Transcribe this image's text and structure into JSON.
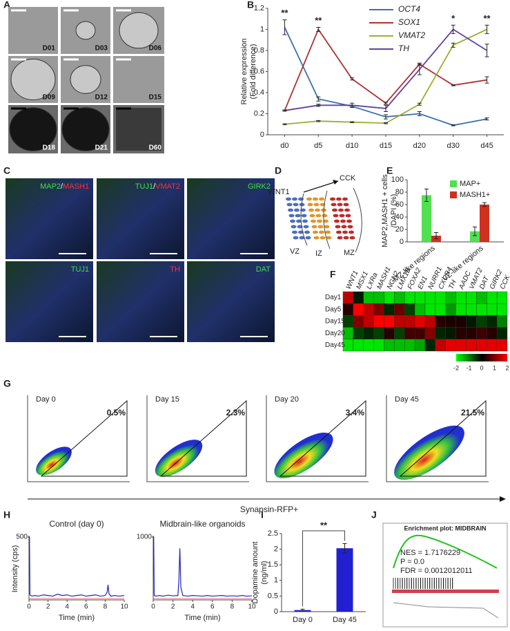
{
  "figure": {
    "panel_labels": [
      "A",
      "B",
      "C",
      "D",
      "E",
      "F",
      "G",
      "H",
      "I",
      "J"
    ],
    "a_labels": [
      "D01",
      "D03",
      "D06",
      "D09",
      "D12",
      "D15",
      "D18",
      "D21",
      "D60"
    ],
    "c_labels": [
      [
        {
          "text": "MAP2",
          "color": "#40e040"
        },
        {
          "text": "/",
          "color": "#ffffff"
        },
        {
          "text": "MASH1",
          "color": "#ff3030"
        }
      ],
      [
        {
          "text": "TUJ1",
          "color": "#40e040"
        },
        {
          "text": "/",
          "color": "#ffffff"
        },
        {
          "text": "VMAT2",
          "color": "#ff3030"
        }
      ],
      [
        {
          "text": "GIRK2",
          "color": "#40e040"
        }
      ],
      [
        {
          "text": "TUJ1",
          "color": "#40e040"
        }
      ],
      [
        {
          "text": "TH",
          "color": "#ff3030"
        }
      ],
      [
        {
          "text": "DAT",
          "color": "#40e040"
        }
      ]
    ],
    "d_labels": [
      "WNT1",
      "CCK",
      "VZ",
      "IZ",
      "MZ"
    ],
    "g": {
      "panels": [
        {
          "title": "Day 0",
          "percent": "0.5%"
        },
        {
          "title": "Day 15",
          "percent": "2.3%"
        },
        {
          "title": "Day 20",
          "percent": "3.4%"
        },
        {
          "title": "Day 45",
          "percent": "21.5%"
        }
      ],
      "xlabel": "Synapsin-RFP+"
    },
    "h_ylabel": "Intensity (cps)",
    "j": {
      "title": "Enrichment plot: MIDBRAIN",
      "stats": [
        "NES = 1.7176229",
        "P = 0.0",
        "FDR = 0.0012012011"
      ]
    }
  },
  "chart_data": [
    {
      "type": "line",
      "categories": [
        "d0",
        "d5",
        "d10",
        "d15",
        "d20",
        "d30",
        "d45"
      ],
      "ylabel": [
        "Relative expression",
        "(Fold difference)"
      ],
      "ylim": [
        0,
        1.2
      ],
      "yticks": [
        0,
        0.2,
        0.4,
        0.6,
        0.8,
        1,
        1.2
      ],
      "series": [
        {
          "name": "OCT4",
          "color": "#3a6fb0",
          "values": [
            1.02,
            0.34,
            0.27,
            0.17,
            0.2,
            0.09,
            0.15
          ],
          "errors": [
            0.07,
            0.02,
            0.01,
            0.02,
            0.02,
            0.005,
            0.01
          ]
        },
        {
          "name": "SOX1",
          "color": "#b03030",
          "values": [
            0.23,
            1.0,
            0.53,
            0.3,
            0.67,
            0.47,
            0.52
          ],
          "errors": [
            0.005,
            0.02,
            0.01,
            0.01,
            0.01,
            0.005,
            0.03
          ]
        },
        {
          "name": "VMAT2",
          "color": "#9ab030",
          "values": [
            0.1,
            0.13,
            0.12,
            0.11,
            0.29,
            0.85,
            1.0
          ],
          "errors": [
            0.005,
            0.005,
            0.005,
            0.005,
            0.01,
            0.02,
            0.04
          ]
        },
        {
          "name": "TH",
          "color": "#6040a0",
          "values": [
            0.23,
            0.28,
            0.28,
            0.25,
            0.62,
            1.0,
            0.8
          ],
          "errors": [
            0.005,
            0.01,
            0.02,
            0.03,
            0.05,
            0.04,
            0.06
          ]
        }
      ],
      "annotations": [
        {
          "text": "**",
          "at": "d0"
        },
        {
          "text": "**",
          "at": "d5"
        },
        {
          "text": "*",
          "at": "d30"
        },
        {
          "text": "**",
          "at": "d45"
        }
      ]
    },
    {
      "type": "bar",
      "categories": [
        "MZ-like regions",
        "VZ-like regions"
      ],
      "ylabel": [
        "MAP2,MASH1 + cells",
        "/DAPI (%)"
      ],
      "ylim": [
        0,
        100
      ],
      "yticks": [
        0,
        20,
        40,
        60,
        80,
        100
      ],
      "series": [
        {
          "name": "MAP+",
          "color": "#50e050",
          "values": [
            75,
            17
          ],
          "errors": [
            10,
            7
          ]
        },
        {
          "name": "MASH1+",
          "color": "#d03020",
          "values": [
            10,
            60
          ],
          "errors": [
            5,
            3
          ]
        }
      ]
    },
    {
      "type": "heatmap",
      "rows": [
        "Day1",
        "Day5",
        "Day15",
        "Day20",
        "Day45"
      ],
      "columns": [
        "WNT1",
        "MSX1",
        "LXRa",
        "MASH1",
        "NGN2",
        "LMX1B",
        "FOXA2",
        "EN1",
        "NURR1",
        "CXCR4",
        "TH",
        "AADC",
        "VMAT2",
        "DAT",
        "GIRK2",
        "CCK"
      ],
      "values": [
        [
          1.5,
          -0.2,
          -1.5,
          -1.5,
          -1.8,
          -1.5,
          -1.8,
          -1.8,
          -1.8,
          -1.8,
          -1.5,
          -1.8,
          -1.8,
          -1.5,
          -1.8,
          -1.8
        ],
        [
          0.3,
          2,
          1.5,
          1,
          -0.3,
          0.8,
          -0.5,
          -1.5,
          -1.8,
          -1.8,
          -1.2,
          -1.8,
          -1.8,
          -1.8,
          -1.8,
          -1.8
        ],
        [
          -0.5,
          1,
          1.5,
          2,
          2,
          1.5,
          1.5,
          1.8,
          1.5,
          0.3,
          0.2,
          0.2,
          -0.2,
          -0.5,
          -0.3,
          -1
        ],
        [
          -1.5,
          -0.5,
          -0.3,
          -0.5,
          0.3,
          -0.5,
          0.5,
          0.5,
          1,
          -0.3,
          -0.2,
          0.3,
          0.3,
          0.5,
          0.3,
          -0.3
        ],
        [
          -1.8,
          -1.8,
          -1.8,
          -1.8,
          -1.5,
          -1.5,
          -1.5,
          -1.3,
          -0.3,
          1.5,
          1.8,
          1.8,
          1.8,
          1.8,
          1.8,
          1.8
        ]
      ],
      "colorscale": [
        "#00ff00",
        "#000000",
        "#ff0000"
      ],
      "zlim": [
        -2,
        2
      ],
      "zticks": [
        -2,
        -1,
        0,
        1,
        2
      ]
    },
    {
      "type": "line",
      "title": "Control (day 0)",
      "xlabel": "Time (min)",
      "x": [
        0,
        0.05,
        0.1,
        0.3,
        0.6,
        1,
        1.5,
        2,
        2.5,
        3,
        3.5,
        4,
        4.5,
        5,
        5.5,
        6,
        6.5,
        7,
        7.5,
        8,
        8.2,
        8.3,
        8.4,
        8.6,
        9,
        9.5,
        10
      ],
      "y": [
        500,
        500,
        40,
        30,
        35,
        30,
        40,
        35,
        30,
        45,
        35,
        40,
        30,
        35,
        40,
        30,
        35,
        40,
        30,
        35,
        60,
        120,
        50,
        30,
        35,
        30,
        35
      ],
      "color": "#2020c0",
      "xlim": [
        0,
        10
      ],
      "xticks": [
        0,
        2,
        4,
        6,
        8,
        10
      ],
      "ylim": [
        0,
        500
      ],
      "yticks": [
        500
      ]
    },
    {
      "type": "line",
      "title": "Midbrain-like organoids",
      "xlabel": "Time (min)",
      "x": [
        0,
        0.05,
        0.1,
        0.3,
        0.6,
        1,
        1.5,
        2,
        2.5,
        2.6,
        2.7,
        2.8,
        3,
        3.5,
        4,
        4.5,
        5,
        5.5,
        6,
        6.5,
        7,
        7.5,
        8,
        8.5,
        9,
        9.5,
        10
      ],
      "y": [
        1000,
        1000,
        70,
        60,
        70,
        60,
        75,
        65,
        70,
        300,
        820,
        200,
        70,
        60,
        70,
        65,
        60,
        70,
        60,
        65,
        70,
        60,
        65,
        60,
        70,
        60,
        65
      ],
      "color": "#2020c0",
      "xlim": [
        0,
        10
      ],
      "xticks": [
        0,
        2,
        4,
        6,
        8,
        10
      ],
      "ylim": [
        0,
        1000
      ],
      "yticks": [
        1000
      ]
    },
    {
      "type": "bar",
      "categories": [
        "Day 0",
        "Day 45"
      ],
      "ylabel": [
        "Dopamine amount",
        "(ng/ml)"
      ],
      "values": [
        0.05,
        2.03
      ],
      "errors": [
        0.03,
        0.15
      ],
      "color": "#2020d0",
      "ylim": [
        0,
        2.5
      ],
      "yticks": [
        0,
        0.5,
        1,
        1.5,
        2,
        2.5
      ],
      "annotation": "**"
    }
  ]
}
